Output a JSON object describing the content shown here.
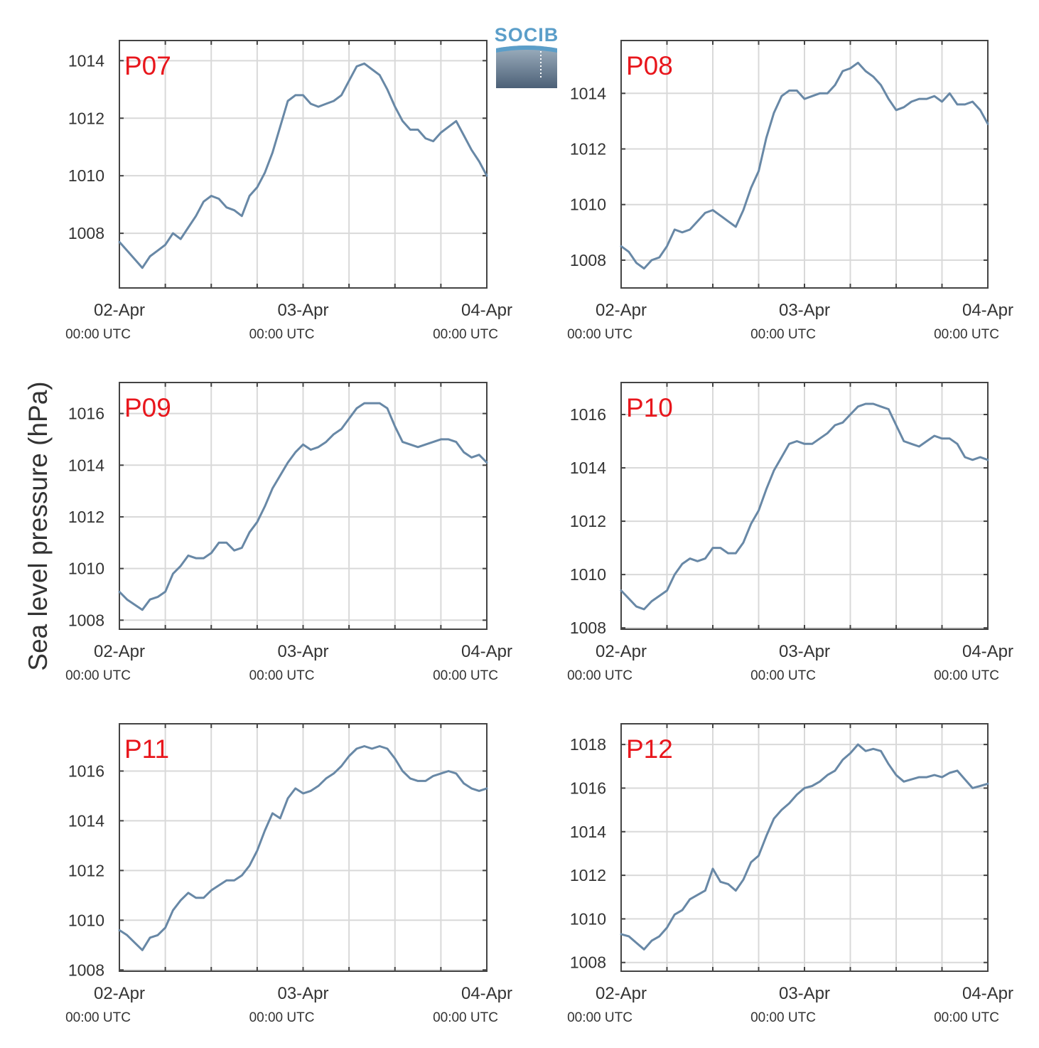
{
  "ylabel": "Sea level pressure (hPa)",
  "logo": {
    "text": "SOCIB"
  },
  "colors": {
    "line": "#6888a6",
    "panel_label": "#e8161c",
    "grid": "#d9d9d9",
    "axes": "#444444"
  },
  "chart_data": [
    {
      "type": "line",
      "panel": "P07",
      "grid": true,
      "x_ticks": [
        {
          "date": "02-Apr",
          "time": "00:00 UTC"
        },
        {
          "date": "03-Apr",
          "time": "00:00 UTC"
        },
        {
          "date": "04-Apr",
          "time": "00:00 UTC"
        }
      ],
      "x_hours": [
        0,
        48
      ],
      "ylim": [
        1006.1,
        1014.7
      ],
      "yticks": [
        1008,
        1010,
        1012,
        1014
      ],
      "series": [
        {
          "x": [
            0,
            1,
            2,
            3,
            4,
            5,
            6,
            7,
            8,
            9,
            10,
            11,
            12,
            13,
            14,
            15,
            16,
            17,
            18,
            19,
            20,
            21,
            22,
            23,
            24,
            25,
            26,
            27,
            28,
            29,
            30,
            31,
            32,
            33,
            34,
            35,
            36,
            37,
            38,
            39,
            40,
            41,
            42,
            43,
            44,
            45,
            46,
            47,
            48
          ],
          "y": [
            1007.7,
            1007.4,
            1007.1,
            1006.8,
            1007.2,
            1007.4,
            1007.6,
            1008.0,
            1007.8,
            1008.2,
            1008.6,
            1009.1,
            1009.3,
            1009.2,
            1008.9,
            1008.8,
            1008.6,
            1009.3,
            1009.6,
            1010.1,
            1010.8,
            1011.7,
            1012.6,
            1012.8,
            1012.8,
            1012.5,
            1012.4,
            1012.5,
            1012.6,
            1012.8,
            1013.3,
            1013.8,
            1013.9,
            1013.7,
            1013.5,
            1013.0,
            1012.4,
            1011.9,
            1011.6,
            1011.6,
            1011.3,
            1011.2,
            1011.5,
            1011.7,
            1011.9,
            1011.4,
            1010.9,
            1010.5,
            1010.0
          ]
        }
      ]
    },
    {
      "type": "line",
      "panel": "P08",
      "grid": true,
      "x_ticks": [
        {
          "date": "02-Apr",
          "time": "00:00 UTC"
        },
        {
          "date": "03-Apr",
          "time": "00:00 UTC"
        },
        {
          "date": "04-Apr",
          "time": "00:00 UTC"
        }
      ],
      "x_hours": [
        0,
        48
      ],
      "ylim": [
        1007.0,
        1015.9
      ],
      "yticks": [
        1008,
        1010,
        1012,
        1014
      ],
      "series": [
        {
          "x": [
            0,
            1,
            2,
            3,
            4,
            5,
            6,
            7,
            8,
            9,
            10,
            11,
            12,
            13,
            14,
            15,
            16,
            17,
            18,
            19,
            20,
            21,
            22,
            23,
            24,
            25,
            26,
            27,
            28,
            29,
            30,
            31,
            32,
            33,
            34,
            35,
            36,
            37,
            38,
            39,
            40,
            41,
            42,
            43,
            44,
            45,
            46,
            47,
            48
          ],
          "y": [
            1008.5,
            1008.3,
            1007.9,
            1007.7,
            1008.0,
            1008.1,
            1008.5,
            1009.1,
            1009.0,
            1009.1,
            1009.4,
            1009.7,
            1009.8,
            1009.6,
            1009.4,
            1009.2,
            1009.8,
            1010.6,
            1011.2,
            1012.4,
            1013.3,
            1013.9,
            1014.1,
            1014.1,
            1013.8,
            1013.9,
            1014.0,
            1014.0,
            1014.3,
            1014.8,
            1014.9,
            1015.1,
            1014.8,
            1014.6,
            1014.3,
            1013.8,
            1013.4,
            1013.5,
            1013.7,
            1013.8,
            1013.8,
            1013.9,
            1013.7,
            1014.0,
            1013.6,
            1013.6,
            1013.7,
            1013.4,
            1012.9
          ]
        }
      ]
    },
    {
      "type": "line",
      "panel": "P09",
      "grid": true,
      "x_ticks": [
        {
          "date": "02-Apr",
          "time": "00:00 UTC"
        },
        {
          "date": "03-Apr",
          "time": "00:00 UTC"
        },
        {
          "date": "04-Apr",
          "time": "00:00 UTC"
        }
      ],
      "x_hours": [
        0,
        48
      ],
      "ylim": [
        1007.65,
        1017.2
      ],
      "yticks": [
        1008,
        1010,
        1012,
        1014,
        1016
      ],
      "series": [
        {
          "x": [
            0,
            1,
            2,
            3,
            4,
            5,
            6,
            7,
            8,
            9,
            10,
            11,
            12,
            13,
            14,
            15,
            16,
            17,
            18,
            19,
            20,
            21,
            22,
            23,
            24,
            25,
            26,
            27,
            28,
            29,
            30,
            31,
            32,
            33,
            34,
            35,
            36,
            37,
            38,
            39,
            40,
            41,
            42,
            43,
            44,
            45,
            46,
            47,
            48
          ],
          "y": [
            1009.1,
            1008.8,
            1008.6,
            1008.4,
            1008.8,
            1008.9,
            1009.1,
            1009.8,
            1010.1,
            1010.5,
            1010.4,
            1010.4,
            1010.6,
            1011.0,
            1011.0,
            1010.7,
            1010.8,
            1011.4,
            1011.8,
            1012.4,
            1013.1,
            1013.6,
            1014.1,
            1014.5,
            1014.8,
            1014.6,
            1014.7,
            1014.9,
            1015.2,
            1015.4,
            1015.8,
            1016.2,
            1016.4,
            1016.4,
            1016.4,
            1016.2,
            1015.5,
            1014.9,
            1014.8,
            1014.7,
            1014.8,
            1014.9,
            1015.0,
            1015.0,
            1014.9,
            1014.5,
            1014.3,
            1014.4,
            1014.1
          ]
        }
      ]
    },
    {
      "type": "line",
      "panel": "P10",
      "grid": true,
      "x_ticks": [
        {
          "date": "02-Apr",
          "time": "00:00 UTC"
        },
        {
          "date": "03-Apr",
          "time": "00:00 UTC"
        },
        {
          "date": "04-Apr",
          "time": "00:00 UTC"
        }
      ],
      "x_hours": [
        0,
        48
      ],
      "ylim": [
        1007.95,
        1017.2
      ],
      "yticks": [
        1008,
        1010,
        1012,
        1014,
        1016
      ],
      "series": [
        {
          "x": [
            0,
            1,
            2,
            3,
            4,
            5,
            6,
            7,
            8,
            9,
            10,
            11,
            12,
            13,
            14,
            15,
            16,
            17,
            18,
            19,
            20,
            21,
            22,
            23,
            24,
            25,
            26,
            27,
            28,
            29,
            30,
            31,
            32,
            33,
            34,
            35,
            36,
            37,
            38,
            39,
            40,
            41,
            42,
            43,
            44,
            45,
            46,
            47,
            48
          ],
          "y": [
            1009.4,
            1009.1,
            1008.8,
            1008.7,
            1009.0,
            1009.2,
            1009.4,
            1010.0,
            1010.4,
            1010.6,
            1010.5,
            1010.6,
            1011.0,
            1011.0,
            1010.8,
            1010.8,
            1011.2,
            1011.9,
            1012.4,
            1013.2,
            1013.9,
            1014.4,
            1014.9,
            1015.0,
            1014.9,
            1014.9,
            1015.1,
            1015.3,
            1015.6,
            1015.7,
            1016.0,
            1016.3,
            1016.4,
            1016.4,
            1016.3,
            1016.2,
            1015.6,
            1015.0,
            1014.9,
            1014.8,
            1015.0,
            1015.2,
            1015.1,
            1015.1,
            1014.9,
            1014.4,
            1014.3,
            1014.4,
            1014.3
          ]
        }
      ]
    },
    {
      "type": "line",
      "panel": "P11",
      "grid": true,
      "x_ticks": [
        {
          "date": "02-Apr",
          "time": "00:00 UTC"
        },
        {
          "date": "03-Apr",
          "time": "00:00 UTC"
        },
        {
          "date": "04-Apr",
          "time": "00:00 UTC"
        }
      ],
      "x_hours": [
        0,
        48
      ],
      "ylim": [
        1007.95,
        1017.9
      ],
      "yticks": [
        1008,
        1010,
        1012,
        1014,
        1016
      ],
      "series": [
        {
          "x": [
            0,
            1,
            2,
            3,
            4,
            5,
            6,
            7,
            8,
            9,
            10,
            11,
            12,
            13,
            14,
            15,
            16,
            17,
            18,
            19,
            20,
            21,
            22,
            23,
            24,
            25,
            26,
            27,
            28,
            29,
            30,
            31,
            32,
            33,
            34,
            35,
            36,
            37,
            38,
            39,
            40,
            41,
            42,
            43,
            44,
            45,
            46,
            47,
            48
          ],
          "y": [
            1009.6,
            1009.4,
            1009.1,
            1008.8,
            1009.3,
            1009.4,
            1009.7,
            1010.4,
            1010.8,
            1011.1,
            1010.9,
            1010.9,
            1011.2,
            1011.4,
            1011.6,
            1011.6,
            1011.8,
            1012.2,
            1012.8,
            1013.6,
            1014.3,
            1014.1,
            1014.9,
            1015.3,
            1015.1,
            1015.2,
            1015.4,
            1015.7,
            1015.9,
            1016.2,
            1016.6,
            1016.9,
            1017.0,
            1016.9,
            1017.0,
            1016.9,
            1016.5,
            1016.0,
            1015.7,
            1015.6,
            1015.6,
            1015.8,
            1015.9,
            1016.0,
            1015.9,
            1015.5,
            1015.3,
            1015.2,
            1015.3
          ]
        }
      ]
    },
    {
      "type": "line",
      "panel": "P12",
      "grid": true,
      "x_ticks": [
        {
          "date": "02-Apr",
          "time": "00:00 UTC"
        },
        {
          "date": "03-Apr",
          "time": "00:00 UTC"
        },
        {
          "date": "04-Apr",
          "time": "00:00 UTC"
        }
      ],
      "x_hours": [
        0,
        48
      ],
      "ylim": [
        1007.6,
        1018.95
      ],
      "yticks": [
        1008,
        1010,
        1012,
        1014,
        1016,
        1018
      ],
      "series": [
        {
          "x": [
            0,
            1,
            2,
            3,
            4,
            5,
            6,
            7,
            8,
            9,
            10,
            11,
            12,
            13,
            14,
            15,
            16,
            17,
            18,
            19,
            20,
            21,
            22,
            23,
            24,
            25,
            26,
            27,
            28,
            29,
            30,
            31,
            32,
            33,
            34,
            35,
            36,
            37,
            38,
            39,
            40,
            41,
            42,
            43,
            44,
            45,
            46,
            47,
            48
          ],
          "y": [
            1009.3,
            1009.2,
            1008.9,
            1008.6,
            1009.0,
            1009.2,
            1009.6,
            1010.2,
            1010.4,
            1010.9,
            1011.1,
            1011.3,
            1012.3,
            1011.7,
            1011.6,
            1011.3,
            1011.8,
            1012.6,
            1012.9,
            1013.8,
            1014.6,
            1015.0,
            1015.3,
            1015.7,
            1016.0,
            1016.1,
            1016.3,
            1016.6,
            1016.8,
            1017.3,
            1017.6,
            1018.0,
            1017.7,
            1017.8,
            1017.7,
            1017.1,
            1016.6,
            1016.3,
            1016.4,
            1016.5,
            1016.5,
            1016.6,
            1016.5,
            1016.7,
            1016.8,
            1016.4,
            1016.0,
            1016.1,
            1016.2
          ]
        }
      ]
    }
  ]
}
